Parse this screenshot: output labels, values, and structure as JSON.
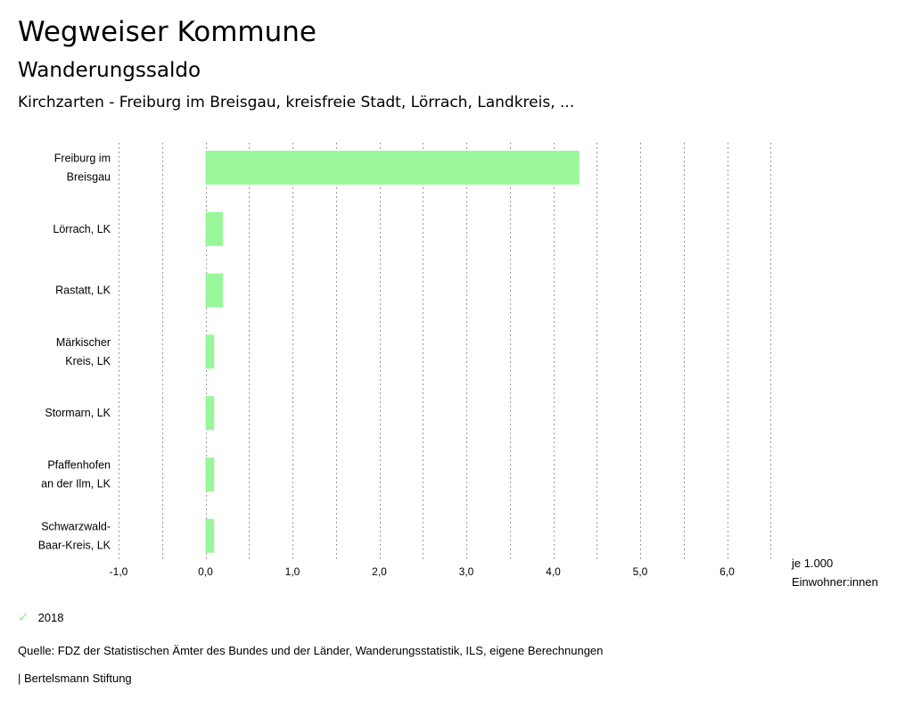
{
  "header": {
    "title": "Wegweiser Kommune",
    "subtitle": "Wanderungssaldo",
    "filter": "Kirchzarten - Freiburg im Breisgau, kreisfreie Stadt, Lörrach, Landkreis, ..."
  },
  "chart_data": {
    "type": "bar",
    "orientation": "horizontal",
    "categories": [
      [
        "Freiburg im",
        "Breisgau"
      ],
      [
        "Lörrach, LK"
      ],
      [
        "Rastatt, LK"
      ],
      [
        "Märkischer",
        "Kreis, LK"
      ],
      [
        "Stormarn, LK"
      ],
      [
        "Pfaffenhofen",
        "an der Ilm, LK"
      ],
      [
        "Schwarzwald-",
        "Baar-Kreis, LK"
      ]
    ],
    "series": [
      {
        "name": "2018",
        "color": "#99f799",
        "values": [
          4.3,
          0.2,
          0.2,
          0.1,
          0.1,
          0.1,
          0.1
        ]
      }
    ],
    "xlim": [
      -1.0,
      6.5
    ],
    "ticks": [
      -1.0,
      0.0,
      1.0,
      2.0,
      3.0,
      4.0,
      5.0,
      6.0
    ],
    "tick_labels": [
      "-1,0",
      "0,0",
      "1,0",
      "2,0",
      "3,0",
      "4,0",
      "5,0",
      "6,0"
    ],
    "grid_step": 0.5,
    "xlabel": [
      "je 1.000",
      "Einwohner:innen"
    ],
    "grid": true,
    "legend_position": "bottom-left"
  },
  "legend": {
    "label": "2018"
  },
  "footer": {
    "source": "Quelle: FDZ der Statistischen Ämter des Bundes und der Länder, Wanderungsstatistik, ILS, eigene Berechnungen",
    "brand": "| Bertelsmann Stiftung"
  }
}
